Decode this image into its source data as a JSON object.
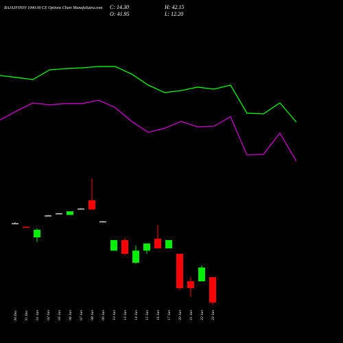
{
  "chart_data": {
    "type": "candlestick",
    "title": "BAJAJFINSV 1940.00  CE Options  Chart MunafaSutra.com",
    "info": [
      "C: 14.30",
      "H: 42.15",
      "O: 41.95",
      "L: 12.20"
    ],
    "categories": [
      "30 Dec",
      "31 Dec",
      "01 Jan",
      "02 Jan",
      "03 Jan",
      "06 Jan",
      "07 Jan",
      "08 Jan",
      "09 Jan",
      "10 Jan",
      "13 Jan",
      "14 Jan",
      "15 Jan",
      "16 Jan",
      "17 Jan",
      "20 Jan",
      "21 Jan",
      "22 Jan",
      "23 Jan"
    ],
    "open": [
      101,
      97,
      85.5,
      109.5,
      111.8,
      110,
      117,
      126,
      103,
      71,
      82.5,
      57.8,
      71,
      84,
      73.5,
      67.5,
      37.5,
      37.5,
      41.95
    ],
    "high": [
      102,
      97.5,
      95.3,
      110,
      112,
      114,
      117.5,
      150,
      103.5,
      82.5,
      85,
      76.5,
      78.8,
      99,
      82.5,
      67.5,
      42,
      54.8,
      42.15
    ],
    "low": [
      101,
      96.8,
      80.3,
      109.5,
      111.8,
      110,
      117,
      116,
      103,
      71,
      66,
      56.3,
      67.5,
      73.5,
      73.5,
      27.8,
      20.3,
      37.5,
      12.2
    ],
    "close": [
      101,
      96.8,
      93.8,
      109.5,
      111.8,
      114,
      117,
      116,
      103,
      82.5,
      67.5,
      71,
      78.8,
      73.5,
      82.5,
      30,
      30,
      52.5,
      14.3
    ],
    "up_color": "#00ee00",
    "down_color": "#ff0000",
    "flat_color": "#cccccc",
    "series": [
      {
        "color": "#00ff00",
        "values": [
          262.5,
          260.3,
          258,
          268.5,
          270,
          270.8,
          272.3,
          272.3,
          264,
          252,
          243.8,
          246,
          249.8,
          247.5,
          252,
          221.3,
          220.5,
          232.5,
          211.5
        ]
      },
      {
        "color": "#cc00cc",
        "values": [
          213.8,
          223.5,
          232.5,
          230.3,
          231.8,
          231.8,
          235.5,
          227.3,
          212.3,
          200.3,
          204.8,
          212.3,
          206.3,
          207,
          217.5,
          175.5,
          176.3,
          199.5,
          168.8
        ]
      }
    ],
    "ylim": [
      0,
      300
    ]
  }
}
